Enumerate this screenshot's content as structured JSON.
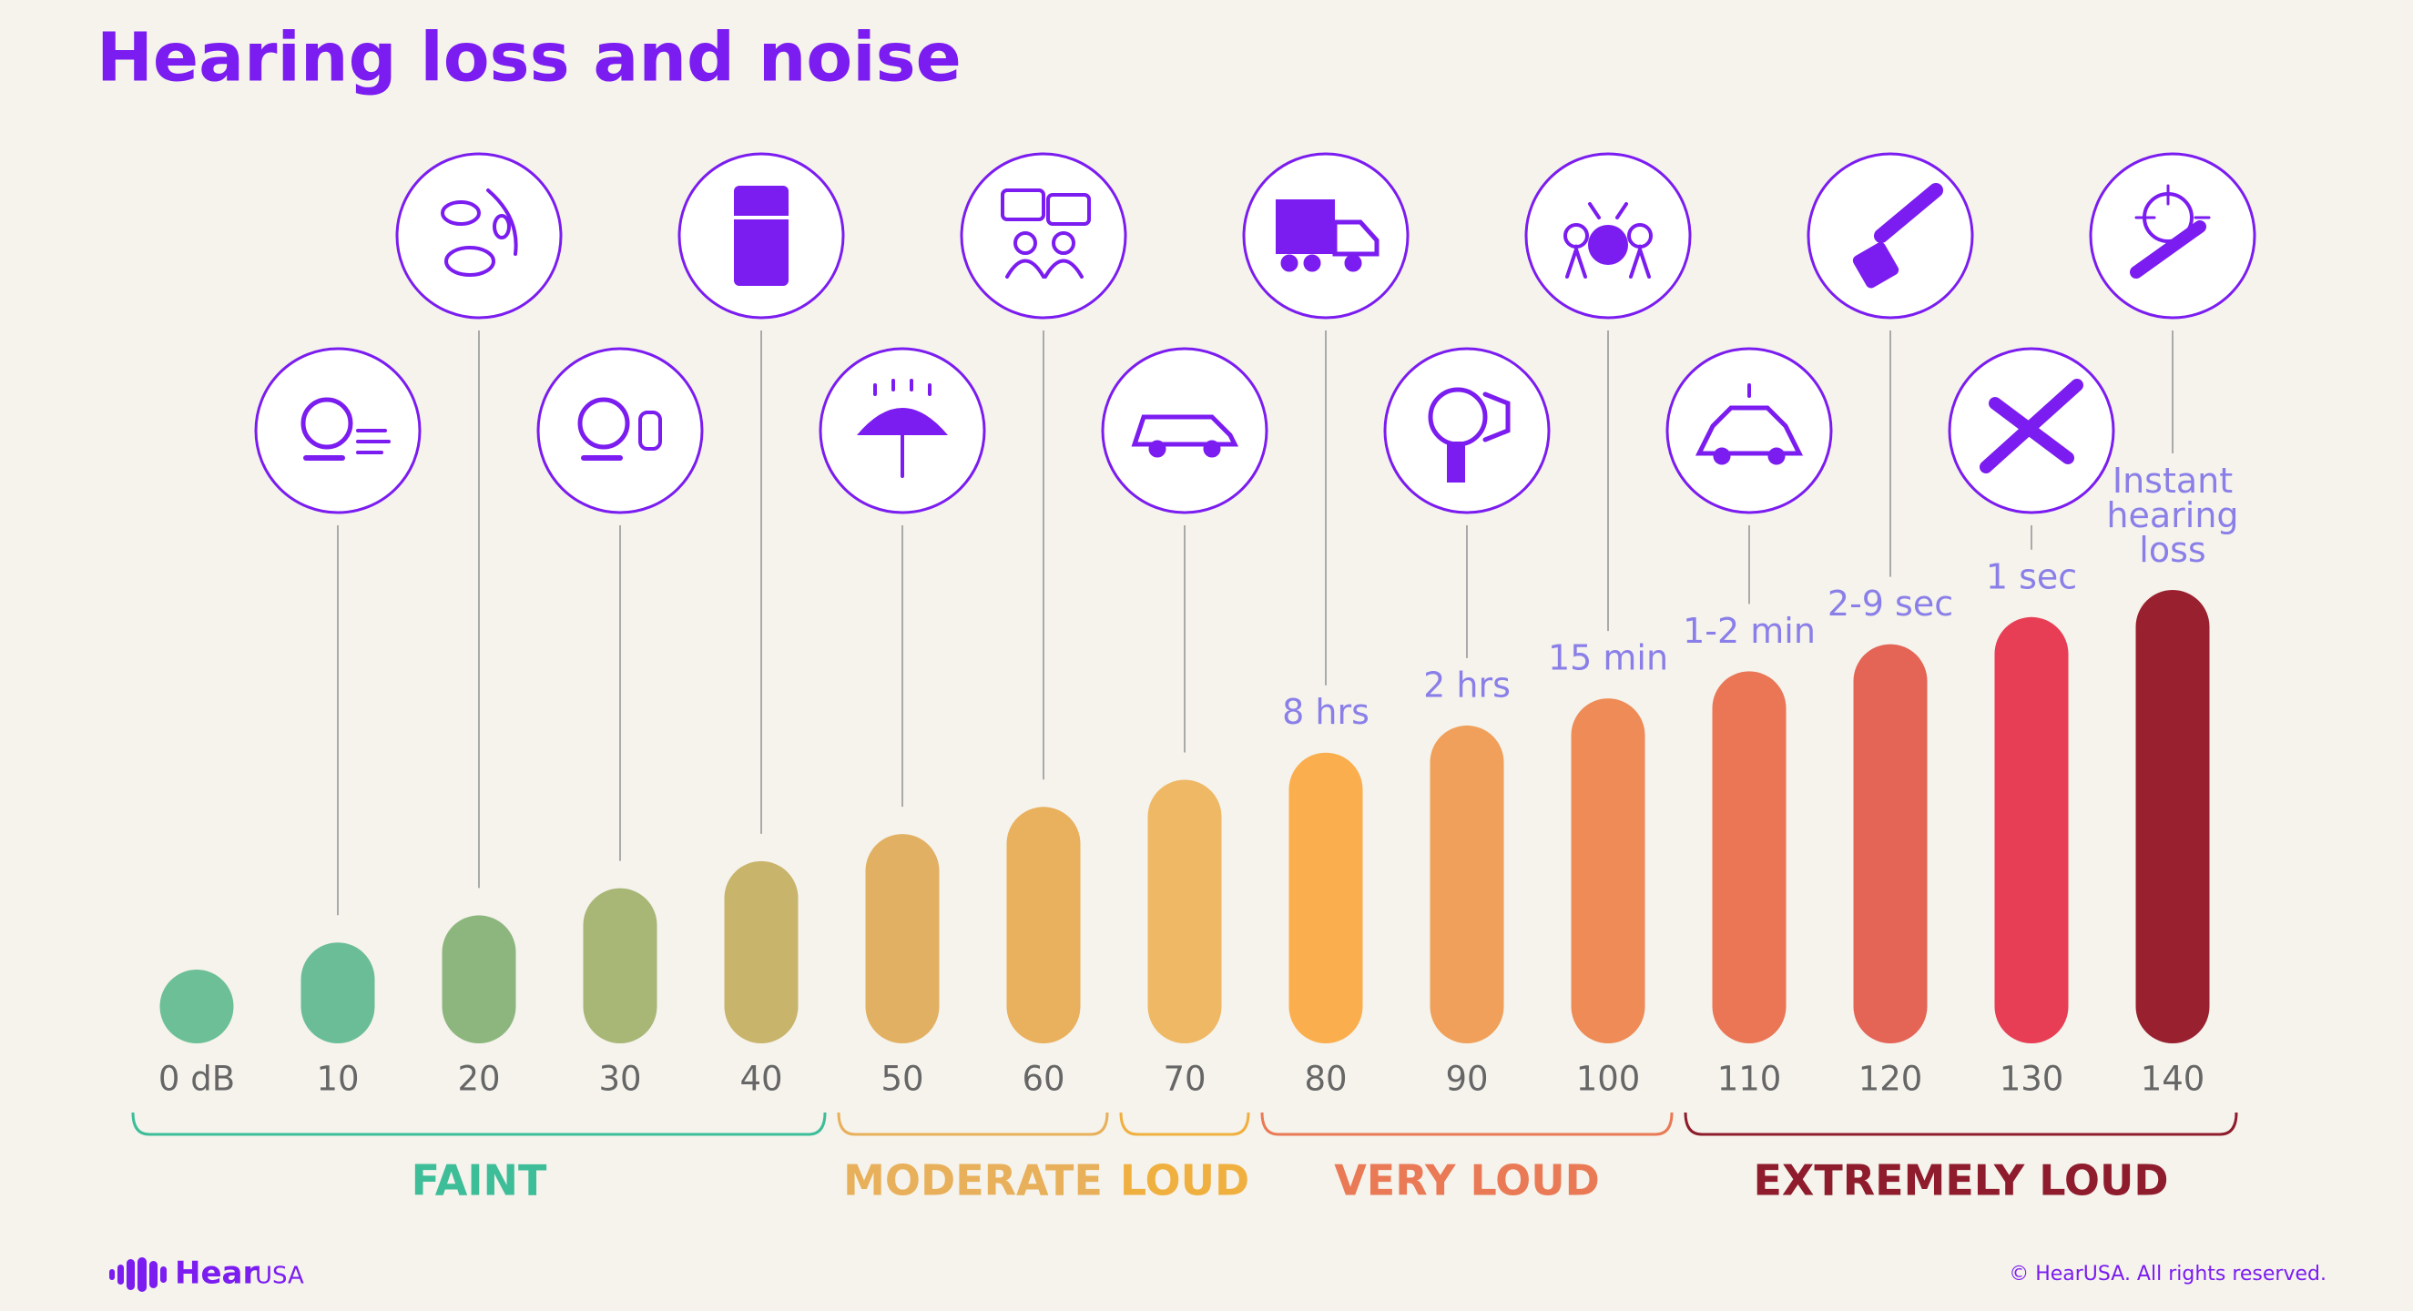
{
  "chart_data": {
    "type": "bar",
    "title": "Hearing loss and noise",
    "categories": [
      "0 dB",
      "10",
      "20",
      "30",
      "40",
      "50",
      "60",
      "70",
      "80",
      "90",
      "100",
      "110",
      "120",
      "130",
      "140"
    ],
    "values": [
      0,
      10,
      20,
      30,
      40,
      50,
      60,
      70,
      80,
      90,
      100,
      110,
      120,
      130,
      140
    ],
    "colors": [
      "#6cbf97",
      "#6bbd98",
      "#8db67f",
      "#a8b676",
      "#c9b46b",
      "#e2b062",
      "#e9b05d",
      "#efb865",
      "#fbae4d",
      "#f0a05a",
      "#ee8b56",
      "#ea7656",
      "#e46455",
      "#e83e55",
      "#99202f"
    ],
    "exposure": [
      null,
      null,
      null,
      null,
      null,
      null,
      null,
      null,
      "8 hrs",
      "2 hrs",
      "15 min",
      "1-2 min",
      "2-9 sec",
      "1 sec",
      "Instant hearing loss"
    ],
    "groups": [
      {
        "name": "FAINT",
        "color": "#3dbd98",
        "range": [
          0,
          40
        ]
      },
      {
        "name": "MODERATE",
        "color": "#e8b05a",
        "range": [
          50,
          60
        ]
      },
      {
        "name": "LOUD",
        "color": "#f0b040",
        "range": [
          70,
          70
        ]
      },
      {
        "name": "VERY LOUD",
        "color": "#e97a55",
        "range": [
          80,
          100
        ]
      },
      {
        "name": "EXTREMELY LOUD",
        "color": "#8e1c2c",
        "range": [
          110,
          140
        ]
      }
    ]
  },
  "footer": {
    "logo": "Hear",
    "logo_suffix": "USA",
    "copyright": "© HearUSA. All rights reserved."
  }
}
